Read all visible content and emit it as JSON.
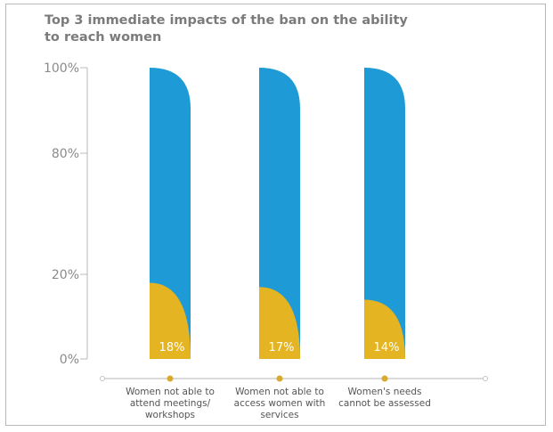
{
  "chart_data": {
    "type": "bar",
    "title": "Top 3 immediate impacts of the ban on the ability to reach women",
    "categories": [
      "Women not able to attend meetings/ workshops",
      "Women not able to access women with services",
      "Women's needs cannot be assessed"
    ],
    "category_lines": [
      [
        "Women not able to",
        "attend meetings/",
        "workshops"
      ],
      [
        "Women not able to",
        "access women with",
        "services"
      ],
      [
        "Women's needs",
        "cannot be assessed"
      ]
    ],
    "values": [
      18,
      17,
      14
    ],
    "value_labels": [
      "18%",
      "17%",
      "14%"
    ],
    "y_ticks": [
      {
        "value": 0,
        "label": "0%"
      },
      {
        "value": 20,
        "label": "20%"
      },
      {
        "value": 80,
        "label": "80%"
      },
      {
        "value": 100,
        "label": "100%"
      }
    ],
    "ylim": [
      0,
      100
    ],
    "grid": false,
    "colors": {
      "background_bar": "#1e9ad6",
      "value_fill": "#e4b422",
      "axis": "#c4c4c4",
      "tick_text": "#8a8a8a",
      "title": "#7b7b7b",
      "marker": "#d9aa2b"
    }
  }
}
